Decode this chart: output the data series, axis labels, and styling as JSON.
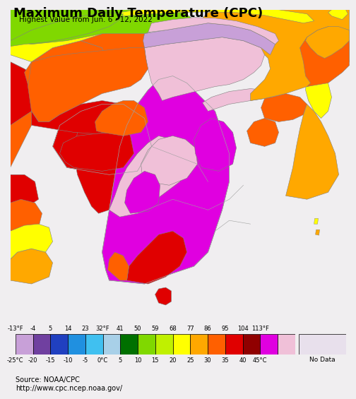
{
  "title": "Maximum Daily Temperature (CPC)",
  "subtitle": "Highest Value from Jun. 6 - 12, 2022",
  "source_line1": "Source: NOAA/CPC",
  "source_line2": "http://www.cpc.ncep.noaa.gov/",
  "fahrenheit_labels": [
    "-13°F",
    "-4",
    "5",
    "14",
    "23",
    "32°F",
    "41",
    "50",
    "59",
    "68",
    "77",
    "86",
    "95",
    "104",
    "113°F"
  ],
  "celsius_labels": [
    "-25°C",
    "-20",
    "-15",
    "-10",
    "-5",
    "0°C",
    "5",
    "10",
    "15",
    "20",
    "25",
    "30",
    "35",
    "40",
    "45°C"
  ],
  "legend_colors": [
    "#c8a0d8",
    "#7040a0",
    "#2040c0",
    "#2090e0",
    "#40c0f0",
    "#a8d0e8",
    "#007000",
    "#80d800",
    "#c0f000",
    "#ffff00",
    "#ffa800",
    "#ff6000",
    "#e00000",
    "#900000",
    "#e000e0",
    "#f0c0d8"
  ],
  "no_data_color": "#e8e0ec",
  "background_color": "#f0eef0",
  "map_ocean_color": "#c8dce8",
  "title_fontsize": 13,
  "subtitle_fontsize": 7.5,
  "source_fontsize": 7
}
